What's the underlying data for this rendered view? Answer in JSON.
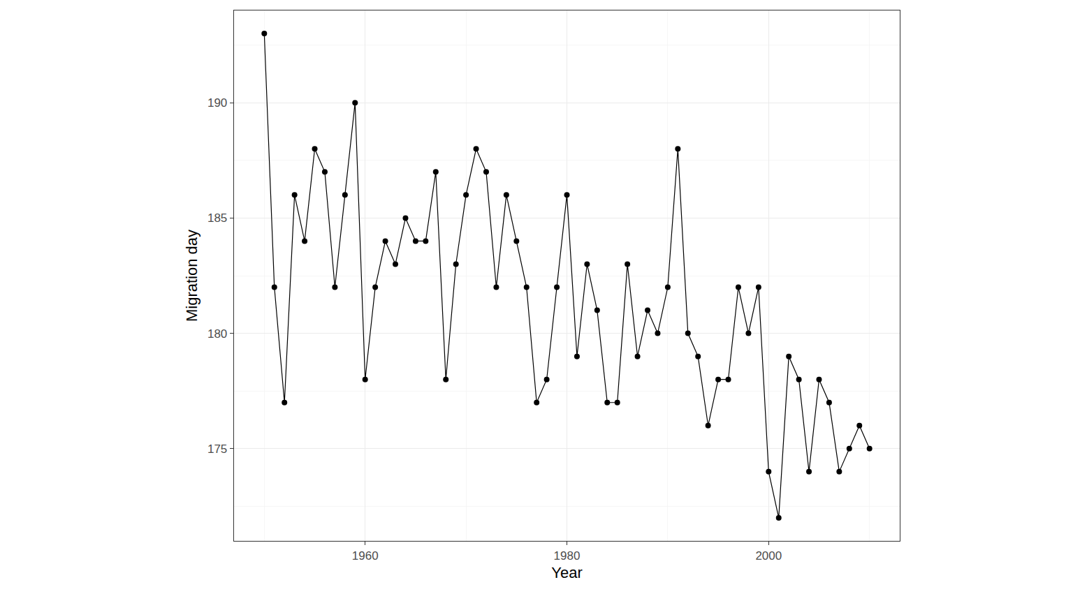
{
  "chart_data": {
    "type": "line",
    "marker": "circle",
    "color": "#000000",
    "grid": true,
    "x_label": "Year",
    "y_label": "Migration day",
    "x": [
      1950,
      1951,
      1952,
      1953,
      1954,
      1955,
      1956,
      1957,
      1958,
      1959,
      1960,
      1961,
      1962,
      1963,
      1964,
      1965,
      1966,
      1967,
      1968,
      1969,
      1970,
      1971,
      1972,
      1973,
      1974,
      1975,
      1976,
      1977,
      1978,
      1979,
      1980,
      1981,
      1982,
      1983,
      1984,
      1985,
      1986,
      1987,
      1988,
      1989,
      1990,
      1991,
      1992,
      1993,
      1994,
      1995,
      1996,
      1997,
      1998,
      1999,
      2000,
      2001,
      2002,
      2003,
      2004,
      2005,
      2006,
      2007,
      2008,
      2009,
      2010
    ],
    "values": [
      193,
      182,
      177,
      186,
      184,
      188,
      187,
      182,
      186,
      190,
      178,
      182,
      184,
      183,
      185,
      184,
      184,
      187,
      178,
      183,
      186,
      188,
      187,
      182,
      186,
      184,
      182,
      177,
      178,
      182,
      186,
      179,
      183,
      181,
      177,
      177,
      183,
      179,
      181,
      180,
      182,
      188,
      180,
      179,
      176,
      178,
      178,
      182,
      180,
      182,
      174,
      172,
      179,
      178,
      174,
      178,
      177,
      174,
      175,
      176,
      175
    ],
    "xlim": [
      1947,
      2013
    ],
    "xticks": [
      1960,
      1980,
      2000
    ],
    "ylim": [
      171,
      194
    ],
    "yticks": [
      175,
      180,
      185,
      190
    ]
  }
}
